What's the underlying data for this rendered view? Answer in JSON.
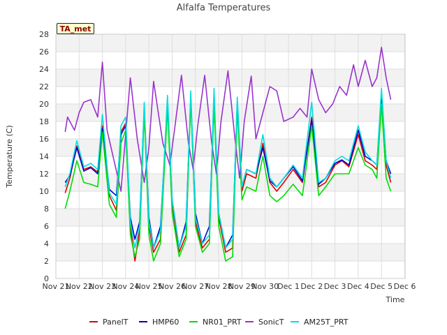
{
  "chart_data": {
    "type": "line",
    "title": "Alfalfa Temperatures",
    "station_tag": "TA_met",
    "xlabel": "Time",
    "ylabel": "Temperature (C)",
    "xlim": [
      0,
      14
    ],
    "ylim": [
      0,
      28
    ],
    "x_ticks": [
      {
        "x": 0,
        "label": "Nov 21"
      },
      {
        "x": 1,
        "label": "Nov 22"
      },
      {
        "x": 2,
        "label": "Nov 23"
      },
      {
        "x": 3,
        "label": "Nov 24"
      },
      {
        "x": 4,
        "label": "Nov 25"
      },
      {
        "x": 5,
        "label": "Nov 26"
      },
      {
        "x": 6,
        "label": "Nov 27"
      },
      {
        "x": 7,
        "label": "Nov 28"
      },
      {
        "x": 8,
        "label": "Nov 29"
      },
      {
        "x": 9,
        "label": "Nov 30"
      },
      {
        "x": 10,
        "label": "Dec 1"
      },
      {
        "x": 11,
        "label": "Dec 2"
      },
      {
        "x": 12,
        "label": "Dec 3"
      },
      {
        "x": 13,
        "label": "Dec 4"
      },
      {
        "x": 14,
        "label": "Dec 5"
      },
      {
        "x": 15,
        "label": "Dec 6"
      }
    ],
    "y_ticks": [
      0,
      2,
      4,
      6,
      8,
      10,
      12,
      14,
      16,
      18,
      20,
      22,
      24,
      26,
      28
    ],
    "grid": true,
    "legend_position": "bottom",
    "series": [
      {
        "name": "PanelT",
        "color": "#dd0000",
        "x": [
          0.4,
          0.6,
          0.9,
          1.2,
          1.5,
          1.8,
          2.0,
          2.3,
          2.6,
          2.8,
          3.0,
          3.2,
          3.4,
          3.6,
          3.8,
          4.0,
          4.2,
          4.5,
          4.8,
          5.0,
          5.3,
          5.6,
          5.8,
          6.0,
          6.3,
          6.6,
          6.8,
          7.0,
          7.3,
          7.6,
          7.8,
          8.0,
          8.2,
          8.6,
          8.9,
          9.2,
          9.5,
          9.8,
          10.2,
          10.6,
          11.0,
          11.3,
          11.6,
          12.0,
          12.3,
          12.6,
          13.0,
          13.3,
          13.6,
          13.8,
          14.0,
          14.2,
          14.4
        ],
        "y": [
          9.8,
          11.5,
          15.2,
          12.5,
          12.8,
          12.2,
          17.5,
          9.5,
          7.8,
          16.8,
          17.8,
          6.0,
          2.0,
          5.5,
          19.5,
          6.0,
          3.0,
          4.5,
          20.2,
          8.5,
          3.0,
          5.0,
          20.8,
          6.5,
          3.5,
          4.5,
          20.5,
          7.0,
          3.0,
          3.5,
          20.0,
          10.0,
          12.0,
          11.5,
          15.5,
          11.0,
          10.0,
          11.0,
          12.5,
          11.0,
          18.5,
          10.5,
          11.0,
          13.0,
          13.5,
          12.8,
          16.5,
          13.5,
          13.0,
          12.5,
          21.0,
          13.0,
          11.0
        ]
      },
      {
        "name": "HMP60",
        "color": "#0000cc",
        "x": [
          0.4,
          0.6,
          0.9,
          1.2,
          1.5,
          1.8,
          2.0,
          2.3,
          2.6,
          2.8,
          3.0,
          3.2,
          3.4,
          3.6,
          3.8,
          4.0,
          4.2,
          4.5,
          4.8,
          5.0,
          5.3,
          5.6,
          5.8,
          6.0,
          6.3,
          6.6,
          6.8,
          7.0,
          7.3,
          7.6,
          7.8,
          8.0,
          8.2,
          8.6,
          8.9,
          9.2,
          9.5,
          9.8,
          10.2,
          10.6,
          11.0,
          11.3,
          11.6,
          12.0,
          12.3,
          12.6,
          13.0,
          13.3,
          13.6,
          13.8,
          14.0,
          14.2,
          14.4
        ],
        "y": [
          11.0,
          11.8,
          15.0,
          12.3,
          12.7,
          12.0,
          17.2,
          10.2,
          9.5,
          16.5,
          17.5,
          7.0,
          4.5,
          6.5,
          19.5,
          7.0,
          3.5,
          6.0,
          20.0,
          9.0,
          3.5,
          6.5,
          20.8,
          7.5,
          4.0,
          6.0,
          20.5,
          7.5,
          3.5,
          5.0,
          20.0,
          10.5,
          12.5,
          12.0,
          15.0,
          11.2,
          10.5,
          11.5,
          12.8,
          11.2,
          18.2,
          10.8,
          11.5,
          13.2,
          13.6,
          13.0,
          17.0,
          14.0,
          13.5,
          13.0,
          21.0,
          13.5,
          12.0
        ]
      },
      {
        "name": "NR01_PRT",
        "color": "#00dd00",
        "x": [
          0.4,
          0.6,
          0.9,
          1.2,
          1.5,
          1.8,
          2.0,
          2.3,
          2.6,
          2.8,
          3.0,
          3.2,
          3.4,
          3.6,
          3.8,
          4.0,
          4.2,
          4.5,
          4.8,
          5.0,
          5.3,
          5.6,
          5.8,
          6.0,
          6.3,
          6.6,
          6.8,
          7.0,
          7.3,
          7.6,
          7.8,
          8.0,
          8.2,
          8.6,
          8.9,
          9.2,
          9.5,
          9.8,
          10.2,
          10.6,
          11.0,
          11.3,
          11.6,
          12.0,
          12.3,
          12.6,
          13.0,
          13.3,
          13.6,
          13.8,
          14.0,
          14.2,
          14.4
        ],
        "y": [
          8.0,
          10.0,
          13.5,
          11.0,
          10.8,
          10.5,
          16.8,
          8.5,
          7.0,
          15.5,
          17.0,
          5.0,
          2.5,
          4.5,
          19.0,
          5.0,
          2.0,
          4.0,
          19.5,
          7.5,
          2.5,
          4.5,
          20.5,
          6.0,
          3.0,
          4.0,
          20.0,
          6.0,
          2.0,
          2.5,
          19.5,
          9.0,
          10.5,
          10.0,
          14.0,
          9.5,
          8.8,
          9.5,
          10.8,
          9.5,
          17.5,
          9.5,
          10.5,
          12.0,
          12.0,
          12.0,
          15.0,
          13.0,
          12.5,
          11.5,
          20.0,
          11.5,
          10.0
        ]
      },
      {
        "name": "SonicT",
        "color": "#9933cc",
        "x": [
          0.4,
          0.5,
          0.8,
          1.0,
          1.2,
          1.5,
          1.8,
          2.0,
          2.2,
          2.5,
          2.8,
          3.0,
          3.2,
          3.5,
          3.8,
          4.0,
          4.2,
          4.6,
          4.9,
          5.1,
          5.4,
          5.7,
          5.9,
          6.1,
          6.4,
          6.7,
          6.9,
          7.1,
          7.4,
          7.7,
          7.9,
          8.1,
          8.4,
          8.6,
          8.9,
          9.2,
          9.5,
          9.8,
          10.2,
          10.5,
          10.8,
          11.0,
          11.3,
          11.6,
          11.9,
          12.2,
          12.5,
          12.8,
          13.0,
          13.3,
          13.6,
          13.8,
          14.0,
          14.2,
          14.4
        ],
        "y": [
          16.8,
          18.5,
          17.0,
          19.0,
          20.2,
          20.5,
          18.5,
          24.8,
          17.0,
          13.5,
          10.0,
          16.5,
          23.0,
          16.0,
          11.0,
          15.0,
          22.6,
          15.5,
          13.0,
          17.0,
          23.3,
          15.5,
          12.5,
          17.5,
          23.3,
          15.5,
          12.0,
          18.0,
          23.8,
          16.0,
          11.5,
          18.0,
          23.2,
          16.0,
          19.0,
          22.0,
          21.5,
          18.0,
          18.5,
          19.5,
          18.5,
          24.0,
          20.5,
          19.0,
          20.0,
          22.0,
          21.0,
          24.5,
          22.0,
          25.0,
          22.0,
          23.0,
          26.5,
          23.0,
          20.5
        ]
      },
      {
        "name": "AM25T_PRT",
        "color": "#00dddd",
        "x": [
          0.4,
          0.6,
          0.9,
          1.2,
          1.5,
          1.8,
          2.0,
          2.3,
          2.6,
          2.8,
          3.0,
          3.2,
          3.4,
          3.6,
          3.8,
          4.0,
          4.2,
          4.5,
          4.8,
          5.0,
          5.3,
          5.6,
          5.8,
          6.0,
          6.3,
          6.6,
          6.8,
          7.0,
          7.3,
          7.6,
          7.8,
          8.0,
          8.2,
          8.6,
          8.9,
          9.2,
          9.5,
          9.8,
          10.2,
          10.6,
          11.0,
          11.3,
          11.6,
          12.0,
          12.3,
          12.6,
          13.0,
          13.3,
          13.6,
          13.8,
          14.0,
          14.2,
          14.4
        ],
        "y": [
          10.5,
          12.0,
          15.8,
          12.8,
          13.2,
          12.5,
          18.8,
          9.8,
          8.5,
          17.5,
          18.5,
          6.5,
          3.5,
          6.0,
          20.2,
          6.5,
          3.5,
          5.5,
          21.0,
          9.0,
          3.5,
          6.0,
          21.5,
          7.0,
          4.0,
          5.0,
          21.8,
          7.5,
          3.5,
          4.5,
          20.8,
          10.5,
          12.5,
          12.0,
          16.5,
          11.5,
          10.5,
          11.5,
          13.0,
          11.5,
          20.2,
          11.0,
          11.5,
          13.5,
          14.0,
          13.5,
          17.5,
          14.5,
          13.5,
          13.0,
          21.8,
          13.5,
          11.5
        ]
      }
    ]
  }
}
